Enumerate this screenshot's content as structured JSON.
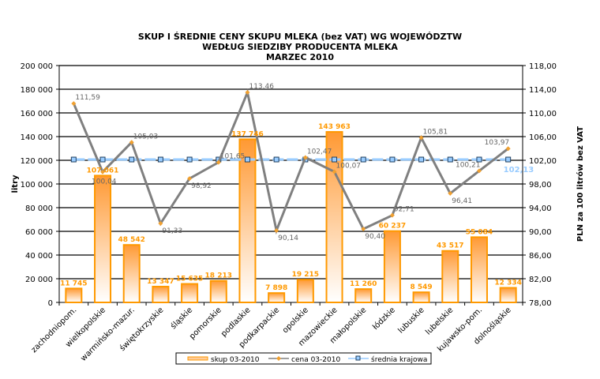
{
  "chart_data": {
    "type": "bar",
    "title": [
      "SKUP I ŚREDNIE CENY SKUPU MLEKA (bez VAT) WG WOJEWÓDZTW",
      "WEDŁUG SIEDZIBY PRODUCENTA MLEKA",
      "MARZEC 2010"
    ],
    "ylabel": "litry",
    "y2label": "PLN za 100 litrów bez VAT",
    "ylim": [
      0,
      200000
    ],
    "y2lim": [
      78,
      118
    ],
    "yticks": [
      "0",
      "20 000",
      "40 000",
      "60 000",
      "80 000",
      "100 000",
      "120 000",
      "140 000",
      "160 000",
      "180 000",
      "200 000"
    ],
    "y2ticks": [
      "78,00",
      "82,00",
      "86,00",
      "90,00",
      "94,00",
      "98,00",
      "102,00",
      "106,00",
      "110,00",
      "114,00",
      "118,00"
    ],
    "categories": [
      "zachodniopom.",
      "wielkopolskie",
      "warmińsko-mazur.",
      "świętokrzyskie",
      "śląskie",
      "pomorskie",
      "podlaskie",
      "podkarpackie",
      "opolskie",
      "mazowieckie",
      "małopolskie",
      "łódzkie",
      "lubuskie",
      "lubelskie",
      "kujawsko-pom.",
      "dolnośląskie"
    ],
    "series": [
      {
        "name": "skup 03-2010",
        "type": "bar",
        "axis": "left",
        "color": "#ff9900",
        "values": [
          11745,
          107061,
          48542,
          13347,
          15635,
          18213,
          137746,
          7898,
          19215,
          143963,
          11260,
          60237,
          8549,
          43517,
          55084,
          12334
        ],
        "labels": [
          "11 745",
          "107 061",
          "48 542",
          "13 347",
          "15 635",
          "18 213",
          "137 746",
          "7 898",
          "19 215",
          "143 963",
          "11 260",
          "60 237",
          "8 549",
          "43 517",
          "55 084",
          "12 334"
        ]
      },
      {
        "name": "cena 03-2010",
        "type": "line",
        "axis": "right",
        "color": "#808080",
        "values": [
          111.59,
          100.04,
          105.03,
          91.33,
          98.92,
          101.65,
          113.46,
          90.14,
          102.47,
          100.07,
          90.4,
          92.71,
          105.81,
          96.41,
          100.21,
          103.97
        ],
        "labels": [
          "111,59",
          "100,04",
          "105,03",
          "91,33",
          "98,92",
          "101,65",
          "113,46",
          "90,14",
          "102,47",
          "100,07",
          "90,40",
          "92,71",
          "105,81",
          "96,41",
          "100,21",
          "103,97"
        ]
      },
      {
        "name": "średnia krajowa",
        "type": "line",
        "axis": "right",
        "color": "#99ccff",
        "value": 102.13,
        "label": "102,13"
      }
    ],
    "legend": "bottom",
    "grid": true
  }
}
